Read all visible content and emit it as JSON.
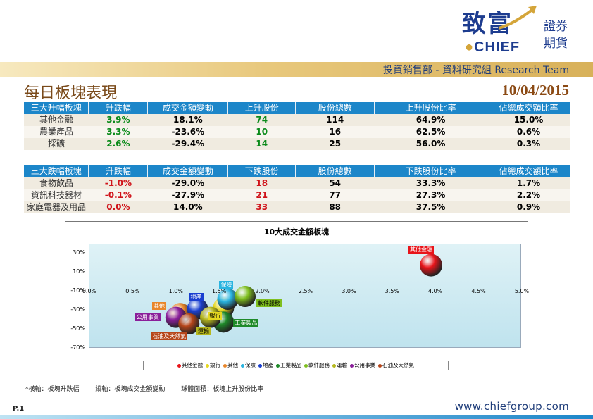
{
  "brand": {
    "logo_cn": "致富",
    "logo_en": "CHIEF",
    "side_line1": "證券",
    "side_line2": "期貨"
  },
  "header": {
    "department": "投資銷售部 - 資料研究組 Research Team",
    "title": "每日板塊表現",
    "date": "10/04/2015"
  },
  "colors": {
    "table_header": "#1c86c9",
    "up": "#0a8a1a",
    "down": "#d0131a",
    "title": "#7a4a1a"
  },
  "gainers": {
    "headers": [
      "三大升幅板塊",
      "升跌幅",
      "成交金額變動",
      "上升股份",
      "股份總數",
      "上升股份比率",
      "佔總成交額比率"
    ],
    "rows": [
      {
        "sector": "其他金融",
        "change": "3.9%",
        "turnover_change": "18.1%",
        "count": "74",
        "total": "114",
        "ratio": "64.9%",
        "share": "15.0%"
      },
      {
        "sector": "農業產品",
        "change": "3.3%",
        "turnover_change": "-23.6%",
        "count": "10",
        "total": "16",
        "ratio": "62.5%",
        "share": "0.6%"
      },
      {
        "sector": "採礦",
        "change": "2.6%",
        "turnover_change": "-29.4%",
        "count": "14",
        "total": "25",
        "ratio": "56.0%",
        "share": "0.3%"
      }
    ]
  },
  "losers": {
    "headers": [
      "三大跌幅板塊",
      "升跌幅",
      "成交金額變動",
      "下跌股份",
      "股份總數",
      "下跌股份比率",
      "佔總成交額比率"
    ],
    "rows": [
      {
        "sector": "食物飲品",
        "change": "-1.0%",
        "turnover_change": "-29.0%",
        "count": "18",
        "total": "54",
        "ratio": "33.3%",
        "share": "1.7%"
      },
      {
        "sector": "資訊科技器材",
        "change": "-0.1%",
        "turnover_change": "-27.9%",
        "count": "21",
        "total": "77",
        "ratio": "27.3%",
        "share": "2.2%"
      },
      {
        "sector": "家庭電器及用品",
        "change": "0.0%",
        "turnover_change": "14.0%",
        "count": "33",
        "total": "88",
        "ratio": "37.5%",
        "share": "0.9%"
      }
    ]
  },
  "chart_data": {
    "type": "scatter",
    "title": "10大成交金額板塊",
    "xlabel": "",
    "ylabel": "",
    "xlim": [
      0,
      5
    ],
    "ylim": [
      -70,
      40
    ],
    "x_ticks": [
      "0.0%",
      "0.5%",
      "1.0%",
      "1.5%",
      "2.0%",
      "2.5%",
      "3.0%",
      "3.5%",
      "4.0%",
      "4.5%",
      "5.0%"
    ],
    "y_ticks": [
      "30%",
      "10%",
      "-10%",
      "-30%",
      "-50%",
      "-70%"
    ],
    "y_tick_values": [
      30,
      10,
      -10,
      -30,
      -50,
      -70
    ],
    "series": [
      {
        "name": "其他金融",
        "x": 3.95,
        "y": 18,
        "size": 64.9,
        "color": "#e8141a"
      },
      {
        "name": "銀行",
        "x": 1.55,
        "y": -27,
        "size": 40,
        "color": "#e6d820"
      },
      {
        "name": "其他",
        "x": 1.05,
        "y": -33,
        "size": 44,
        "color": "#e8862a"
      },
      {
        "name": "保險",
        "x": 1.6,
        "y": -18,
        "size": 42,
        "color": "#2ab4e0"
      },
      {
        "name": "地產",
        "x": 1.25,
        "y": -28,
        "size": 40,
        "color": "#1a3fd0"
      },
      {
        "name": "工業製品",
        "x": 1.55,
        "y": -42,
        "size": 42,
        "color": "#1f8a2a"
      },
      {
        "name": "軟件服務",
        "x": 1.8,
        "y": -15,
        "size": 46,
        "color": "#7fbf1f"
      },
      {
        "name": "運輸",
        "x": 1.4,
        "y": -37,
        "size": 40,
        "color": "#b6b81e"
      },
      {
        "name": "公用事業",
        "x": 1.0,
        "y": -37,
        "size": 40,
        "color": "#8a1f9a"
      },
      {
        "name": "石油及天然氣",
        "x": 1.15,
        "y": -44,
        "size": 40,
        "color": "#b6451a"
      }
    ]
  },
  "footnote": {
    "x_axis": "*橫軸：板塊升跌幅",
    "y_axis": "縱軸：板塊成交金額變動",
    "bubble": "球體面積：板塊上升股份比率"
  },
  "footer": {
    "page": "P.1",
    "website": "www.chiefgroup.com"
  }
}
